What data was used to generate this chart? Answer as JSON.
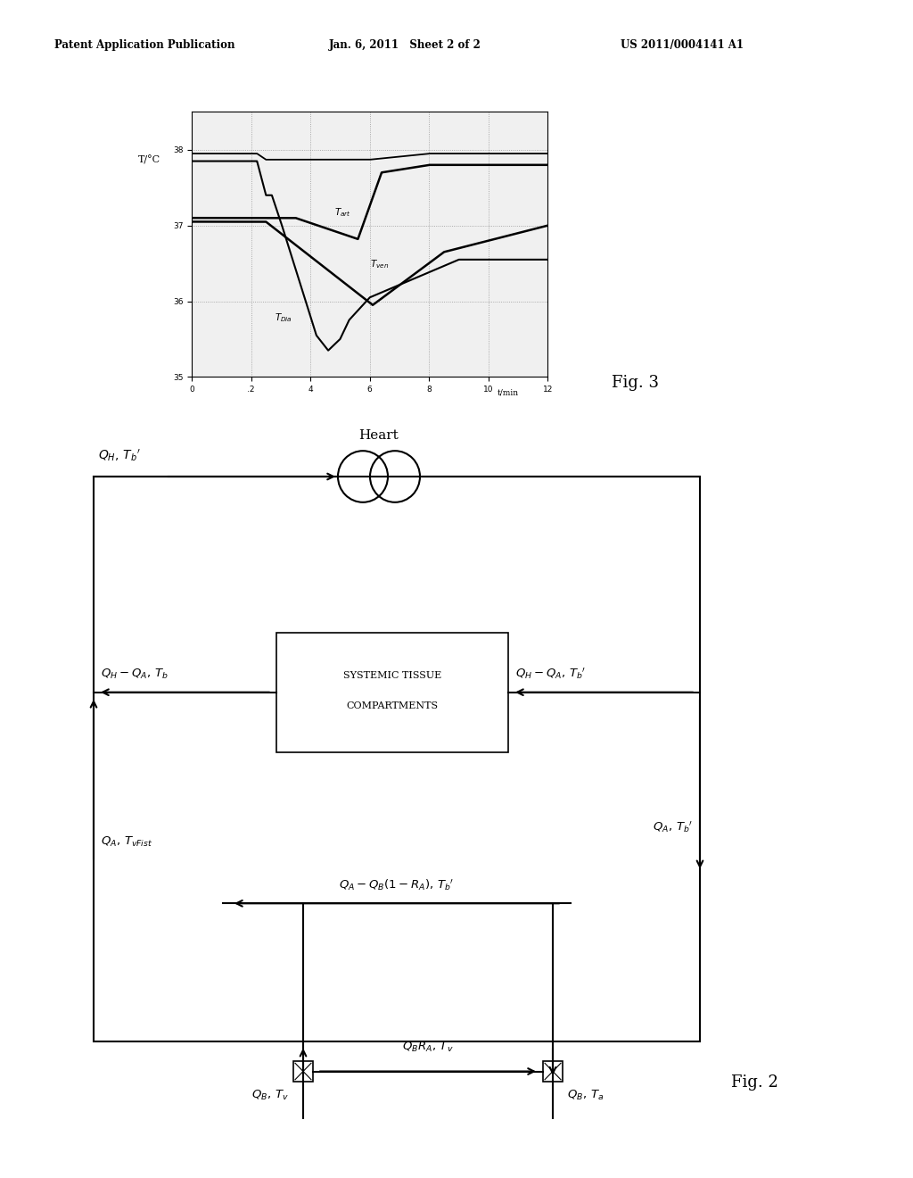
{
  "bg_color": "#ffffff",
  "header_text": "Patent Application Publication",
  "header_date": "Jan. 6, 2011   Sheet 2 of 2",
  "header_patent": "US 2011/0004141 A1",
  "fig3_label": "Fig. 3",
  "fig2_label": "Fig. 2",
  "graph": {
    "xlim": [
      0,
      12
    ],
    "ylim": [
      35,
      38.5
    ],
    "xticks": [
      0,
      2,
      4,
      6,
      8,
      10,
      12
    ],
    "yticks": [
      35,
      36,
      37,
      38
    ],
    "xlabel": "t/min",
    "ylabel": "T/°C"
  },
  "diagram": {
    "heart_label": "Heart",
    "box_label_line1": "SYSTEMIC TISSUE",
    "box_label_line2": "COMPARTMENTS",
    "labels": {
      "Tart": "$T_{art}$",
      "Tven": "$T_{ven}$",
      "TDia": "$T_{Dia}$"
    }
  }
}
